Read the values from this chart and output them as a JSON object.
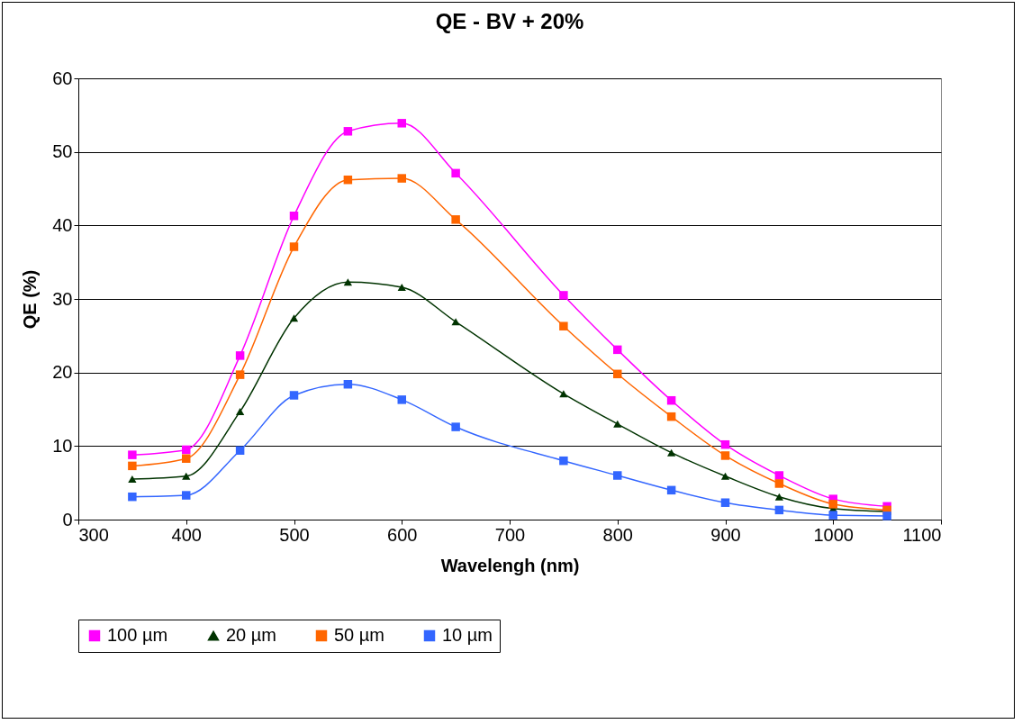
{
  "chart_data": {
    "type": "line",
    "title": "QE - BV + 20%",
    "xlabel": "Wavelengh (nm)",
    "ylabel": "QE (%)",
    "x": [
      350,
      400,
      450,
      500,
      550,
      600,
      650,
      750,
      800,
      850,
      900,
      950,
      1000,
      1050
    ],
    "xlim": [
      300,
      1100
    ],
    "xticks": [
      300,
      400,
      500,
      600,
      700,
      800,
      900,
      1000,
      1100
    ],
    "ylim": [
      0,
      60
    ],
    "yticks": [
      0,
      10,
      20,
      30,
      40,
      50,
      60
    ],
    "grid": "y",
    "legend": "bottom",
    "series": [
      {
        "name": "100 µm",
        "color": "#ff00ff",
        "marker": "square",
        "values": [
          8.8,
          9.5,
          22.3,
          41.3,
          52.8,
          53.9,
          47.1,
          30.5,
          23.1,
          16.2,
          10.2,
          6.0,
          2.8,
          1.8
        ]
      },
      {
        "name": "20 µm",
        "color": "#003300",
        "marker": "triangle",
        "values": [
          5.5,
          5.9,
          14.7,
          27.4,
          32.3,
          31.6,
          26.9,
          17.1,
          13.0,
          9.1,
          5.9,
          3.1,
          1.5,
          1.1
        ]
      },
      {
        "name": "50 µm",
        "color": "#ff6600",
        "marker": "square",
        "values": [
          7.3,
          8.3,
          19.7,
          37.1,
          46.2,
          46.4,
          40.8,
          26.3,
          19.8,
          14.0,
          8.7,
          4.9,
          2.1,
          1.3
        ]
      },
      {
        "name": "10 µm",
        "color": "#3366ff",
        "marker": "square",
        "values": [
          3.1,
          3.3,
          9.4,
          16.9,
          18.4,
          16.3,
          12.6,
          8.0,
          6.0,
          4.0,
          2.3,
          1.3,
          0.6,
          0.5
        ]
      }
    ]
  }
}
